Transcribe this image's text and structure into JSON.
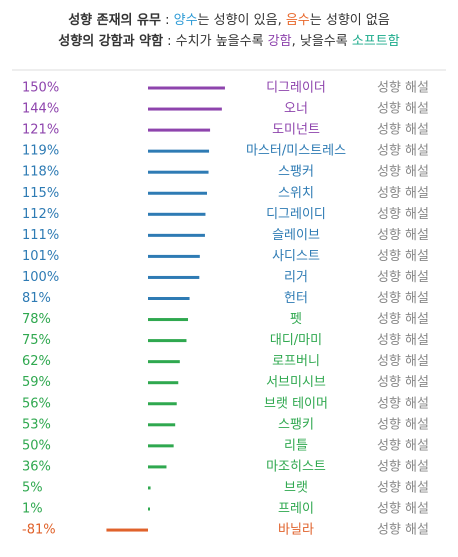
{
  "chart_data": {
    "type": "bar",
    "notes": [
      {
        "parts": [
          {
            "text": "성향 존재의 유무",
            "color": "#333333",
            "bold": true
          },
          {
            "text": " : ",
            "color": "#333333"
          },
          {
            "text": "양수",
            "color": "#2e9bd6"
          },
          {
            "text": "는 성향이 있음, ",
            "color": "#333333"
          },
          {
            "text": "음수",
            "color": "#e8682c"
          },
          {
            "text": "는 성향이 없음",
            "color": "#333333"
          }
        ]
      },
      {
        "parts": [
          {
            "text": "성향의 강함과 약함",
            "color": "#333333",
            "bold": true
          },
          {
            "text": " : 수치가 높을수록 ",
            "color": "#333333"
          },
          {
            "text": "강함",
            "color": "#8e44ad"
          },
          {
            "text": ", 낮을수록 ",
            "color": "#333333"
          },
          {
            "text": "소프트함",
            "color": "#1aaa8a"
          }
        ]
      }
    ],
    "categories": [
      "디그레이더",
      "오너",
      "도미넌트",
      "마스터/미스트레스",
      "스팽커",
      "스위치",
      "디그레이디",
      "슬레이브",
      "사디스트",
      "리거",
      "헌터",
      "펫",
      "대디/마미",
      "로프버니",
      "서브미시브",
      "브랫 테이머",
      "스팽키",
      "리틀",
      "마조히스트",
      "브랫",
      "프레이",
      "바닐라"
    ],
    "values": [
      150,
      144,
      121,
      119,
      118,
      115,
      112,
      111,
      101,
      100,
      81,
      78,
      75,
      62,
      59,
      56,
      53,
      50,
      36,
      5,
      1,
      -81
    ],
    "value_labels": [
      "150%",
      "144%",
      "121%",
      "119%",
      "118%",
      "115%",
      "112%",
      "111%",
      "101%",
      "100%",
      "81%",
      "78%",
      "75%",
      "62%",
      "59%",
      "56%",
      "53%",
      "50%",
      "36%",
      "5%",
      "1%",
      "-81%"
    ],
    "colors": [
      "#8e44ad",
      "#8e44ad",
      "#8e44ad",
      "#2e7bb4",
      "#2e7bb4",
      "#2e7bb4",
      "#2e7bb4",
      "#2e7bb4",
      "#2e7bb4",
      "#2e7bb4",
      "#2e7bb4",
      "#2fa84f",
      "#2fa84f",
      "#2fa84f",
      "#2fa84f",
      "#2fa84f",
      "#2fa84f",
      "#2fa84f",
      "#2fa84f",
      "#2fa84f",
      "#2fa84f",
      "#e0622b"
    ],
    "link_text": "성향 해설"
  }
}
